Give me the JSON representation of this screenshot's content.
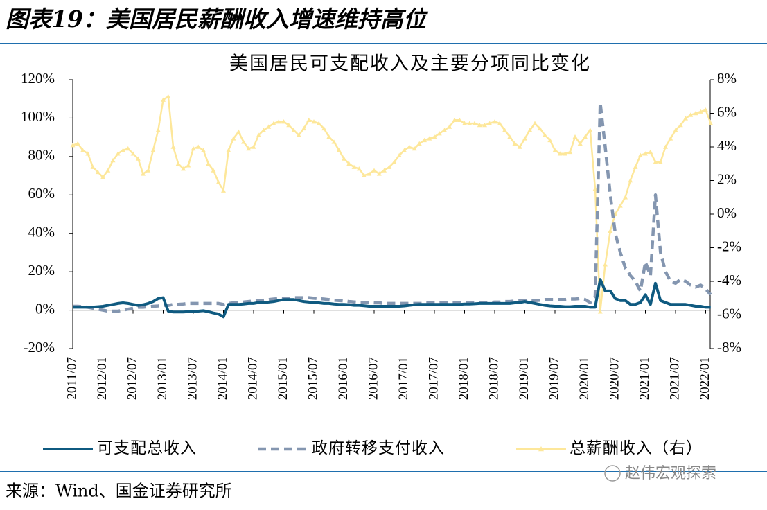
{
  "header": {
    "title": "图表19：美国居民薪酬收入增速维持高位"
  },
  "chart_data": {
    "type": "line",
    "title": "美国居民可支配收入及主要分项同比变化",
    "categories": [
      "2011/07",
      null,
      null,
      null,
      null,
      null,
      "2012/01",
      null,
      null,
      null,
      null,
      null,
      "2012/07",
      null,
      null,
      null,
      null,
      null,
      "2013/01",
      null,
      null,
      null,
      null,
      null,
      "2013/07",
      null,
      null,
      null,
      null,
      null,
      "2014/01",
      null,
      null,
      null,
      null,
      null,
      "2014/07",
      null,
      null,
      null,
      null,
      null,
      "2015/01",
      null,
      null,
      null,
      null,
      null,
      "2015/07",
      null,
      null,
      null,
      null,
      null,
      "2016/01",
      null,
      null,
      null,
      null,
      null,
      "2016/07",
      null,
      null,
      null,
      null,
      null,
      "2017/01",
      null,
      null,
      null,
      null,
      null,
      "2017/07",
      null,
      null,
      null,
      null,
      null,
      "2018/01",
      null,
      null,
      null,
      null,
      null,
      "2018/07",
      null,
      null,
      null,
      null,
      null,
      "2019/01",
      null,
      null,
      null,
      null,
      null,
      "2019/07",
      null,
      null,
      null,
      null,
      null,
      "2020/01",
      null,
      null,
      null,
      null,
      null,
      "2020/07",
      null,
      null,
      null,
      null,
      null,
      "2021/01",
      null,
      null,
      null,
      null,
      null,
      "2021/07",
      null,
      null,
      null,
      null,
      null,
      "2022/01",
      null
    ],
    "series": [
      {
        "name": "可支配总收入",
        "color": "#0f5a80",
        "style": "solid",
        "values": [
          1.5,
          1.5,
          1.5,
          1.5,
          1.6,
          1.8,
          2,
          2.5,
          3,
          3.5,
          3.8,
          3.5,
          3,
          2.5,
          2.8,
          3.5,
          4.5,
          6,
          6.5,
          -0.5,
          -1,
          -1,
          -1,
          -0.8,
          -0.5,
          -0.5,
          -0.3,
          -0.8,
          -1.5,
          -2,
          -3.5,
          3,
          3,
          3,
          3.2,
          3.5,
          3.5,
          4,
          4,
          4.2,
          4.5,
          5,
          5.5,
          5.5,
          5.5,
          5,
          4.5,
          4.2,
          4,
          3.8,
          3.5,
          3.5,
          3.2,
          3,
          3,
          2.8,
          2.5,
          2.5,
          2.3,
          2,
          2,
          2,
          2,
          2,
          2,
          2,
          2.2,
          2.5,
          2.8,
          3,
          3,
          3,
          3,
          3,
          3,
          3,
          3,
          3,
          3.2,
          3.2,
          3.3,
          3.5,
          3.5,
          3.5,
          3.5,
          3.5,
          3.5,
          3.5,
          3.8,
          4,
          4.5,
          4,
          3.5,
          3,
          2.5,
          2.2,
          2,
          2,
          1.8,
          1.8,
          2,
          2,
          2,
          1.5,
          1.5,
          16,
          10,
          10,
          6,
          5,
          5,
          3,
          3,
          4,
          8,
          3,
          14,
          5,
          4,
          3,
          3,
          3,
          3,
          2.5,
          2,
          2,
          1.5,
          1.5
        ]
      },
      {
        "name": "政府转移支付收入",
        "color": "#8496b0",
        "style": "dashed",
        "values": [
          2,
          2,
          1.8,
          1.5,
          1,
          0.5,
          0,
          -0.5,
          -0.5,
          -0.5,
          0,
          0.5,
          1,
          1.5,
          1.5,
          1.8,
          2,
          2.2,
          2.5,
          2.5,
          3,
          3,
          3.2,
          3.5,
          3.5,
          3.5,
          3.5,
          3.5,
          3.5,
          3.5,
          3,
          3.5,
          3.8,
          4,
          4.2,
          4.5,
          4.8,
          5,
          5.2,
          5.5,
          5.8,
          6,
          6,
          6.2,
          6.5,
          6.5,
          6.5,
          6.5,
          6.2,
          6,
          5.8,
          5.5,
          5.2,
          5,
          4.8,
          4.5,
          4.3,
          4,
          4,
          4,
          3.8,
          3.8,
          3.5,
          3.5,
          3.5,
          3.5,
          3.5,
          3.5,
          3.5,
          3.5,
          3.5,
          3.8,
          3.8,
          3.8,
          4,
          4,
          4,
          4,
          4,
          4,
          4,
          4,
          4,
          4,
          4.2,
          4.2,
          4.5,
          4.5,
          4.8,
          5,
          5,
          5,
          5,
          5.2,
          5.5,
          5.5,
          5.5,
          5.5,
          5.5,
          5.8,
          5.8,
          6,
          5.5,
          4,
          7,
          108,
          85,
          60,
          40,
          30,
          22,
          18,
          15,
          10,
          25,
          18,
          60,
          30,
          20,
          15,
          14,
          16,
          15,
          13,
          12,
          13,
          11,
          8
        ]
      },
      {
        "name": "总薪酬收入（右）",
        "color": "#fde79a",
        "style": "triangle",
        "axis": "y2",
        "values": [
          4.1,
          4.2,
          3.8,
          3.6,
          2.8,
          2.5,
          2.2,
          2.6,
          3.2,
          3.6,
          3.8,
          3.9,
          3.6,
          3.3,
          2.4,
          2.6,
          3.8,
          5.0,
          6.8,
          7.0,
          4.0,
          3.0,
          2.7,
          2.9,
          3.9,
          4.0,
          3.8,
          3.0,
          2.6,
          1.9,
          1.4,
          3.8,
          4.5,
          4.9,
          4.3,
          3.9,
          4.0,
          4.7,
          5.0,
          5.2,
          5.4,
          5.5,
          5.5,
          5.3,
          5.0,
          4.7,
          5.1,
          5.6,
          5.5,
          5.4,
          5.1,
          4.6,
          4.3,
          3.8,
          3.3,
          3.0,
          2.8,
          2.7,
          2.3,
          2.4,
          2.6,
          2.4,
          2.6,
          2.8,
          3.1,
          3.5,
          3.8,
          4.0,
          3.9,
          4.2,
          4.4,
          4.5,
          4.6,
          4.8,
          5.0,
          5.2,
          5.6,
          5.6,
          5.4,
          5.4,
          5.4,
          5.3,
          5.3,
          5.4,
          5.5,
          5.4,
          5.0,
          4.6,
          4.2,
          4.0,
          4.5,
          5.0,
          5.4,
          5.1,
          4.7,
          4.4,
          3.8,
          3.6,
          3.6,
          3.7,
          4.6,
          4.2,
          4.6,
          5.0,
          1.5,
          -5.8,
          -3.0,
          -1.0,
          0.0,
          0.5,
          1.0,
          2.0,
          2.8,
          3.5,
          3.6,
          3.7,
          3.1,
          3.1,
          4.0,
          4.5,
          5.0,
          5.3,
          5.7,
          5.9,
          6.0,
          6.1,
          6.2,
          5.4
        ]
      }
    ],
    "ylim": [
      -20,
      120
    ],
    "yticks": [
      {
        "value": -20,
        "label": "-20%"
      },
      {
        "value": 0,
        "label": "0%"
      },
      {
        "value": 20,
        "label": "20%"
      },
      {
        "value": 40,
        "label": "40%"
      },
      {
        "value": 60,
        "label": "60%"
      },
      {
        "value": 80,
        "label": "80%"
      },
      {
        "value": 100,
        "label": "100%"
      },
      {
        "value": 120,
        "label": "120%"
      }
    ],
    "y2lim": [
      -8,
      8
    ],
    "y2ticks": [
      {
        "value": -8,
        "label": "-8%"
      },
      {
        "value": -6,
        "label": "-6%"
      },
      {
        "value": -4,
        "label": "-4%"
      },
      {
        "value": -2,
        "label": "-2%"
      },
      {
        "value": 0,
        "label": "0%"
      },
      {
        "value": 2,
        "label": "2%"
      },
      {
        "value": 4,
        "label": "4%"
      },
      {
        "value": 6,
        "label": "6%"
      },
      {
        "value": 8,
        "label": "8%"
      }
    ],
    "grid": false
  },
  "footer": {
    "source": "来源：Wind、国金证券研究所",
    "watermark": "赵伟宏观探索"
  }
}
